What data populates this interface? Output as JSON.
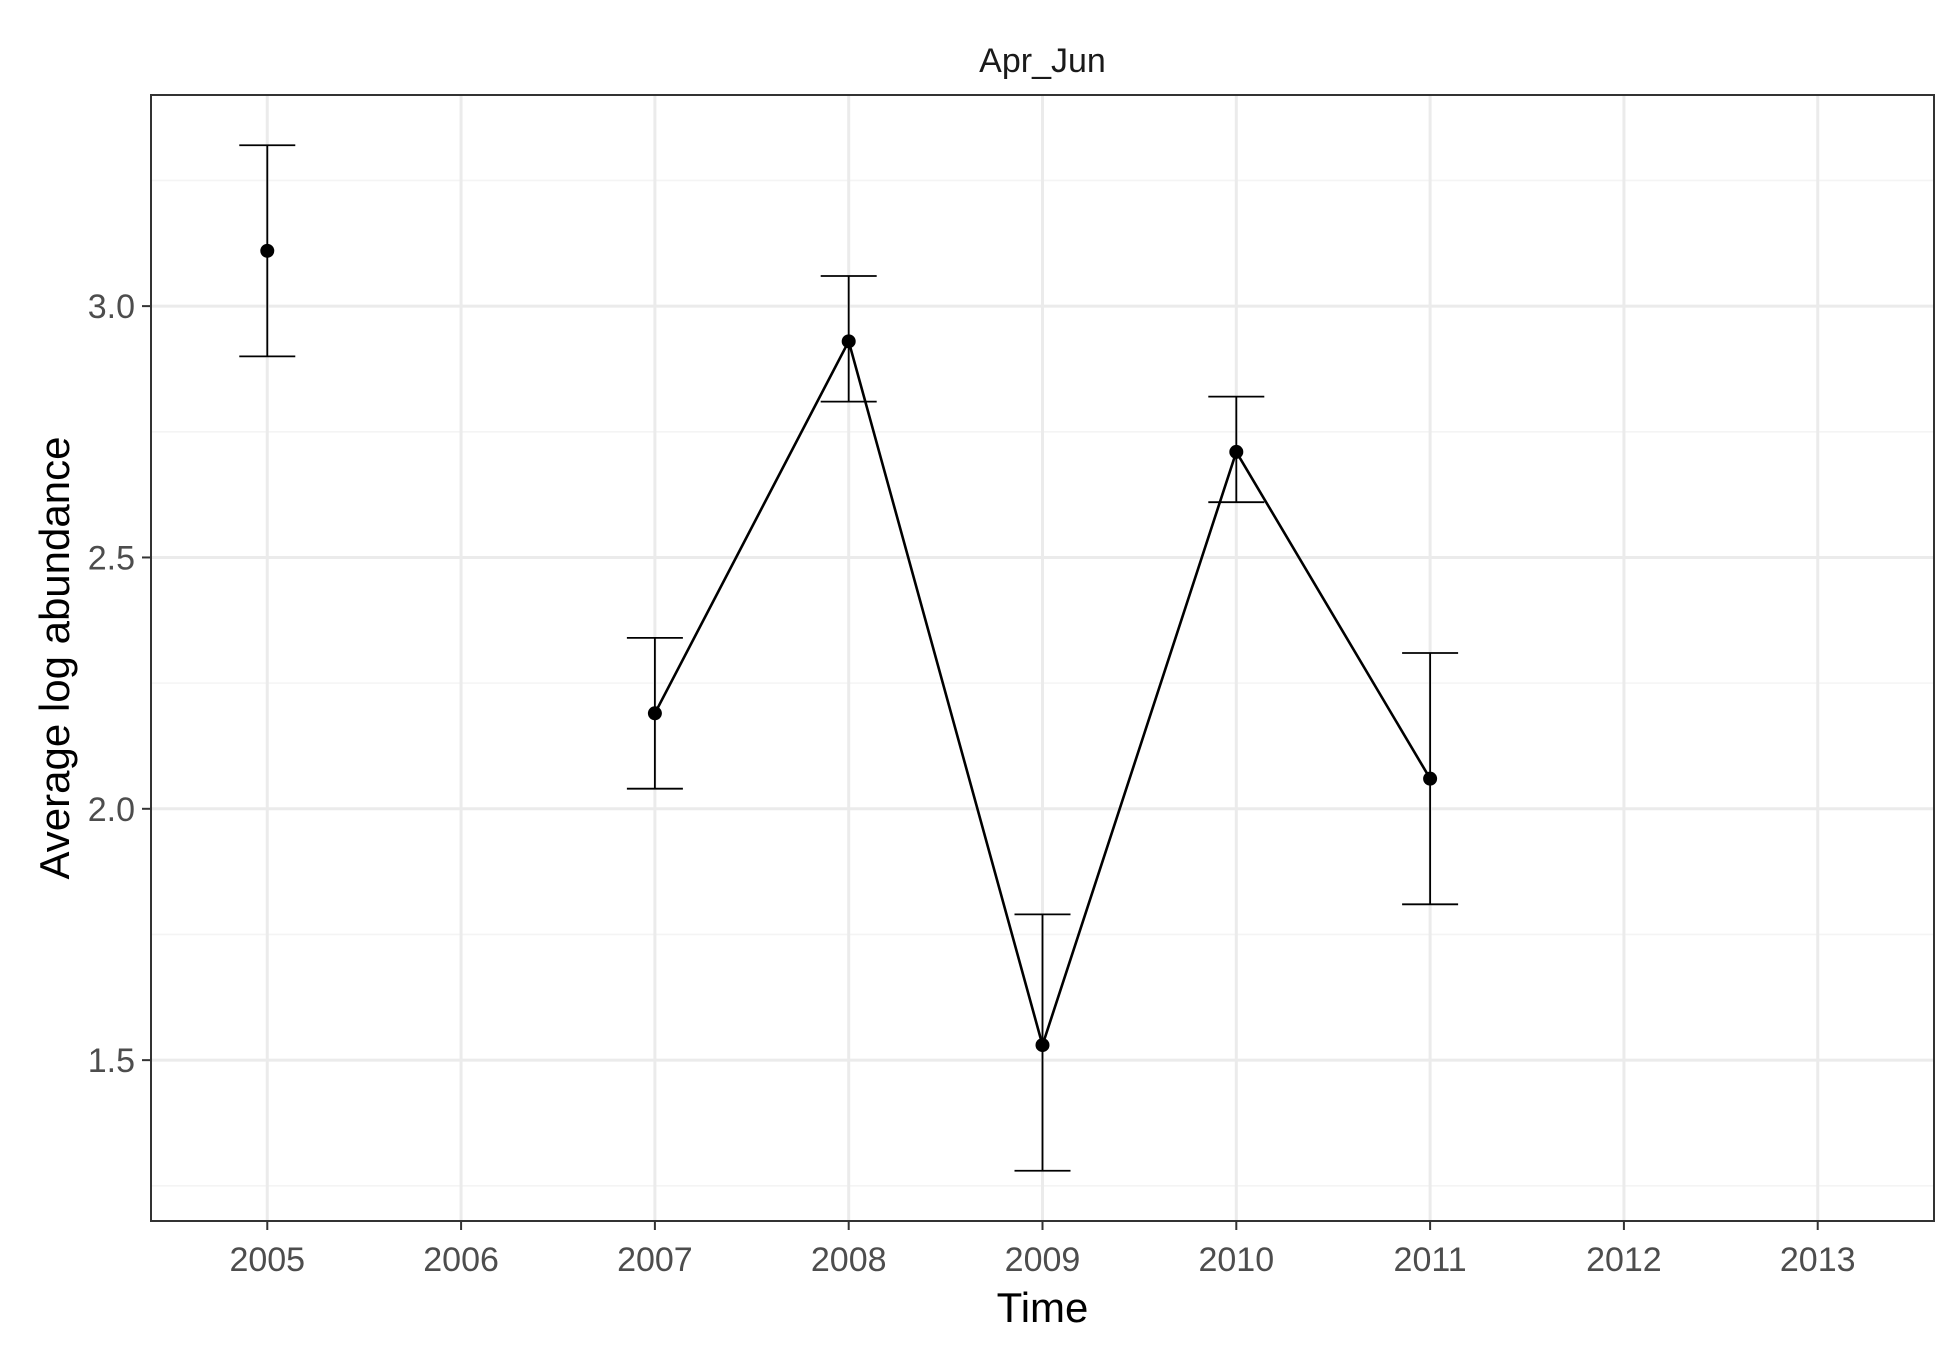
{
  "chart_data": {
    "type": "line",
    "facet_title": "Apr_Jun",
    "xlabel": "Time",
    "ylabel": "Average log abundance",
    "x_ticks": [
      "2005",
      "2006",
      "2007",
      "2008",
      "2009",
      "2010",
      "2011",
      "2012",
      "2013"
    ],
    "y_ticks": [
      "1.5",
      "2.0",
      "2.5",
      "3.0"
    ],
    "xlim": [
      2004.4,
      2013.6
    ],
    "ylim": [
      1.18,
      3.42
    ],
    "grid": true,
    "legend": "none",
    "series": [
      {
        "points": [
          {
            "x": 2005,
            "y": 3.11,
            "ymin": 2.9,
            "ymax": 3.32
          },
          {
            "x": 2007,
            "y": 2.19,
            "ymin": 2.04,
            "ymax": 2.34
          },
          {
            "x": 2008,
            "y": 2.93,
            "ymin": 2.81,
            "ymax": 3.06
          },
          {
            "x": 2009,
            "y": 1.53,
            "ymin": 1.28,
            "ymax": 1.79
          },
          {
            "x": 2010,
            "y": 2.71,
            "ymin": 2.61,
            "ymax": 2.82
          },
          {
            "x": 2011,
            "y": 2.06,
            "ymin": 1.81,
            "ymax": 2.31
          }
        ]
      }
    ]
  },
  "colors": {
    "line": "#000000",
    "point": "#000000",
    "grid_major": "#ebebeb",
    "grid_minor": "#f4f4f4",
    "panel_border": "#333333",
    "tick_label": "#4d4d4d"
  }
}
